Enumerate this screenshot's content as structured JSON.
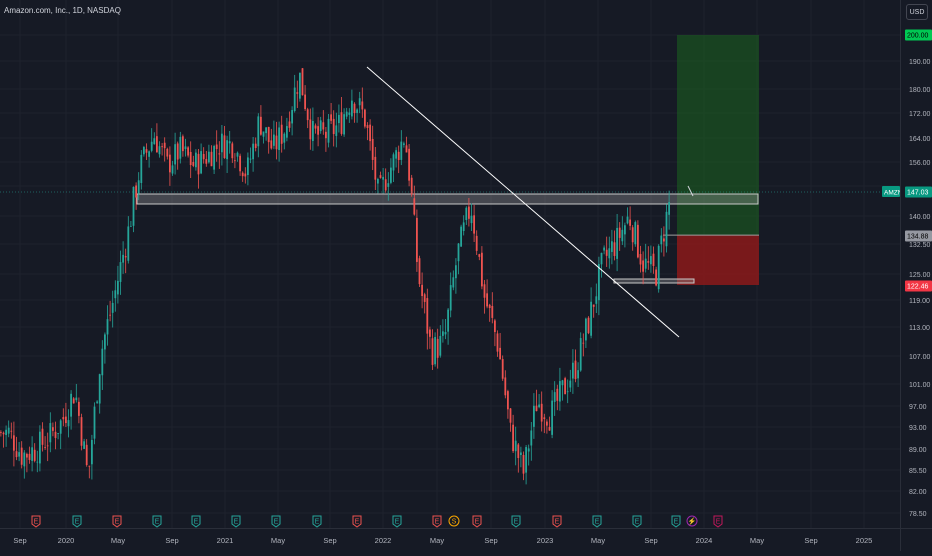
{
  "header": {
    "symbol_title": "Amazon.com, Inc., 1D, NASDAQ",
    "currency": "USD"
  },
  "colors": {
    "background": "#161a25",
    "up": "#26a69a",
    "down": "#ef5350",
    "target_zone": "#1b5e20",
    "stop_zone": "#8b1a1a",
    "support_band": "#9e9e9e",
    "trendline": "#ffffff",
    "earnings": "#ef5350",
    "earnings_beat": "#26a69a",
    "dividend": "#f7a600",
    "split": "#9c27b0"
  },
  "price_axis": {
    "ticks": [
      "200.00",
      "190.00",
      "180.00",
      "172.00",
      "164.00",
      "156.00",
      "147.03",
      "140.00",
      "134.88",
      "132.50",
      "125.00",
      "122.46",
      "119.00",
      "113.00",
      "107.00",
      "101.00",
      "97.00",
      "93.00",
      "89.00",
      "85.50",
      "82.00",
      "78.50"
    ],
    "badges": [
      {
        "symbol": "AMZN",
        "value": "147.03",
        "kind": "last"
      },
      {
        "value": "200.00",
        "kind": "target"
      },
      {
        "value": "134.88",
        "kind": "entry"
      },
      {
        "value": "122.46",
        "kind": "stop"
      }
    ]
  },
  "time_axis": {
    "labels": [
      "Sep",
      "2020",
      "May",
      "Sep",
      "2021",
      "May",
      "Sep",
      "2022",
      "May",
      "Sep",
      "2023",
      "May",
      "Sep",
      "2024",
      "May",
      "Sep",
      "2025"
    ]
  },
  "events": [
    {
      "type": "earnings",
      "label": "E",
      "result": "miss"
    },
    {
      "type": "earnings",
      "label": "E",
      "result": "beat"
    },
    {
      "type": "earnings",
      "label": "E",
      "result": "miss"
    },
    {
      "type": "earnings",
      "label": "E",
      "result": "beat"
    },
    {
      "type": "earnings",
      "label": "E",
      "result": "beat"
    },
    {
      "type": "earnings",
      "label": "E",
      "result": "beat"
    },
    {
      "type": "earnings",
      "label": "E",
      "result": "beat"
    },
    {
      "type": "earnings",
      "label": "E",
      "result": "beat"
    },
    {
      "type": "earnings",
      "label": "E",
      "result": "miss"
    },
    {
      "type": "earnings",
      "label": "E",
      "result": "beat"
    },
    {
      "type": "earnings",
      "label": "E",
      "result": "miss"
    },
    {
      "type": "dividend",
      "label": "S"
    },
    {
      "type": "earnings",
      "label": "E",
      "result": "miss"
    },
    {
      "type": "earnings",
      "label": "E",
      "result": "beat"
    },
    {
      "type": "earnings",
      "label": "E",
      "result": "miss"
    },
    {
      "type": "earnings",
      "label": "E",
      "result": "beat"
    },
    {
      "type": "earnings",
      "label": "E",
      "result": "beat"
    },
    {
      "type": "earnings",
      "label": "E",
      "result": "beat"
    },
    {
      "type": "split",
      "label": "⚡"
    },
    {
      "type": "earnings",
      "label": "E",
      "result": "upcoming"
    }
  ],
  "chart_data": {
    "type": "candlestick",
    "symbol": "AMZN",
    "timeframe": "1D",
    "ylim": [
      78.5,
      200
    ],
    "price_path": [
      [
        "2019-09",
        92
      ],
      [
        "2019-10",
        88
      ],
      [
        "2019-11",
        89
      ],
      [
        "2019-12",
        91
      ],
      [
        "2020-01",
        94
      ],
      [
        "2020-02",
        100
      ],
      [
        "2020-03",
        84
      ],
      [
        "2020-04",
        108
      ],
      [
        "2020-05",
        120
      ],
      [
        "2020-06",
        135
      ],
      [
        "2020-07",
        155
      ],
      [
        "2020-08",
        165
      ],
      [
        "2020-09",
        155
      ],
      [
        "2020-10",
        160
      ],
      [
        "2020-11",
        155
      ],
      [
        "2020-12",
        158
      ],
      [
        "2021-01",
        162
      ],
      [
        "2021-02",
        162
      ],
      [
        "2021-03",
        152
      ],
      [
        "2021-04",
        170
      ],
      [
        "2021-05",
        160
      ],
      [
        "2021-06",
        168
      ],
      [
        "2021-07",
        185
      ],
      [
        "2021-08",
        165
      ],
      [
        "2021-09",
        165
      ],
      [
        "2021-10",
        168
      ],
      [
        "2021-11",
        178
      ],
      [
        "2021-12",
        170
      ],
      [
        "2022-01",
        145
      ],
      [
        "2022-02",
        155
      ],
      [
        "2022-03",
        165
      ],
      [
        "2022-04",
        125
      ],
      [
        "2022-05",
        108
      ],
      [
        "2022-06",
        110
      ],
      [
        "2022-07",
        130
      ],
      [
        "2022-08",
        143
      ],
      [
        "2022-09",
        120
      ],
      [
        "2022-10",
        110
      ],
      [
        "2022-11",
        92
      ],
      [
        "2022-12",
        85
      ],
      [
        "2023-01",
        98
      ],
      [
        "2023-02",
        95
      ],
      [
        "2023-03",
        100
      ],
      [
        "2023-04",
        105
      ],
      [
        "2023-05",
        115
      ],
      [
        "2023-06",
        128
      ],
      [
        "2023-07",
        133
      ],
      [
        "2023-08",
        140
      ],
      [
        "2023-09",
        128
      ],
      [
        "2023-10",
        125
      ],
      [
        "2023-11",
        143
      ],
      [
        "2023-12",
        147
      ]
    ],
    "annotations": {
      "trendline": {
        "from": [
          "2021-07",
          188.5
        ],
        "to": [
          "2023-11",
          111
        ]
      },
      "resistance_band": {
        "from_date": "2020-06",
        "to_date": "2024-03",
        "low": 145,
        "high": 148
      },
      "support_band": {
        "from_date": "2023-05",
        "to_date": "2023-11",
        "low": 123,
        "high": 124
      },
      "position": {
        "type": "long",
        "from_date": "2023-11",
        "to_date": "2024-03",
        "entry": 134.88,
        "target": 200.0,
        "stop": 122.46
      }
    }
  }
}
